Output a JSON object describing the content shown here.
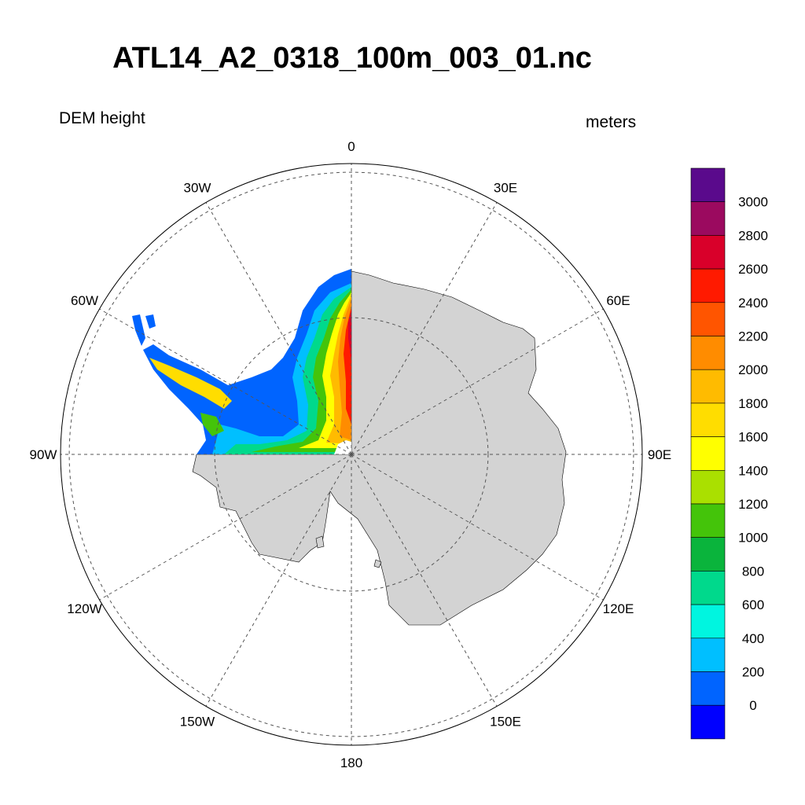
{
  "title": "ATL14_A2_0318_100m_003_01.nc",
  "left_string": "DEM height",
  "right_string": "meters",
  "projection": "south-polar-stereographic",
  "longitude_labels": [
    {
      "lon": 0,
      "text": "0"
    },
    {
      "lon": 30,
      "text": "30E"
    },
    {
      "lon": 60,
      "text": "60E"
    },
    {
      "lon": 90,
      "text": "90E"
    },
    {
      "lon": 120,
      "text": "120E"
    },
    {
      "lon": 150,
      "text": "150E"
    },
    {
      "lon": 180,
      "text": "180"
    },
    {
      "lon": -150,
      "text": "150W"
    },
    {
      "lon": -120,
      "text": "120W"
    },
    {
      "lon": -90,
      "text": "90W"
    },
    {
      "lon": -60,
      "text": "60W"
    },
    {
      "lon": -30,
      "text": "30W"
    }
  ],
  "colors": {
    "land": "#d3d3d3",
    "grid": "#555555",
    "outline": "#000000"
  },
  "colorbar": {
    "labels": [
      "3000",
      "2800",
      "2600",
      "2400",
      "2200",
      "2000",
      "1800",
      "1600",
      "1400",
      "1200",
      "1000",
      "800",
      "600",
      "400",
      "200",
      "0"
    ],
    "colors": [
      "#5a0a8c",
      "#9b0a5f",
      "#d9002a",
      "#ff1a00",
      "#ff5500",
      "#ff8c00",
      "#ffbb00",
      "#ffdd00",
      "#ffff00",
      "#aae000",
      "#44c40a",
      "#0ab43c",
      "#00d98c",
      "#00f5e0",
      "#00bfff",
      "#0064ff",
      "#0000ff"
    ]
  }
}
